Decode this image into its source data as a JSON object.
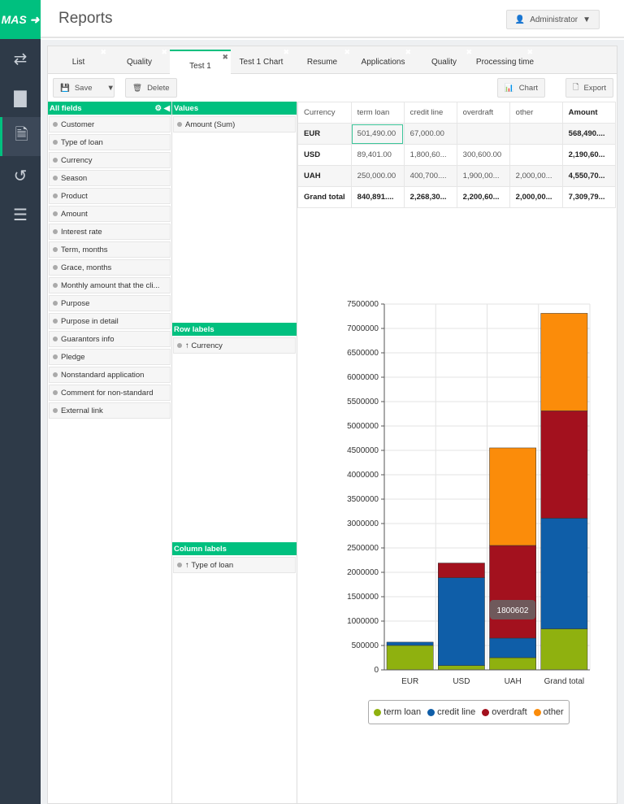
{
  "app": {
    "logo": "MAS",
    "title": "Reports",
    "user": "Administrator"
  },
  "sidebar": [
    {
      "icon": "transfer-icon"
    },
    {
      "icon": "briefcase-icon"
    },
    {
      "icon": "document-icon",
      "active": true
    },
    {
      "icon": "history-icon"
    },
    {
      "icon": "sliders-icon"
    }
  ],
  "tabs": [
    {
      "label": "List"
    },
    {
      "label": "Quality"
    },
    {
      "label": "Test 1",
      "active": true
    },
    {
      "label": "Test 1 Chart"
    },
    {
      "label": "Resume"
    },
    {
      "label": "Applications"
    },
    {
      "label": "Quality"
    },
    {
      "label": "Processing time"
    }
  ],
  "toolbar": {
    "save": "Save",
    "delete": "Delete",
    "chart": "Chart",
    "export": "Export"
  },
  "pivot": {
    "all_fields_label": "All fields",
    "fields": [
      "Customer",
      "Type of loan",
      "Currency",
      "Season",
      "Product",
      "Amount",
      "Interest rate",
      "Term, months",
      "Grace, months",
      "Monthly amount that the cli...",
      "Purpose",
      "Purpose in detail",
      "Guarantors info",
      "Pledge",
      "Nonstandard application",
      "Comment for non-standard",
      "External link"
    ],
    "values_label": "Values",
    "values": [
      "Amount (Sum)"
    ],
    "row_labels_label": "Row labels",
    "rows": [
      "Currency"
    ],
    "column_labels_label": "Column labels",
    "columns": [
      "Type of loan"
    ]
  },
  "table": {
    "headers": [
      "Currency",
      "term loan",
      "credit line",
      "overdraft",
      "other",
      "Amount"
    ],
    "rows": [
      [
        "EUR",
        "501,490.00",
        "67,000.00",
        "",
        "",
        "568,490...."
      ],
      [
        "USD",
        "89,401.00",
        "1,800,60...",
        "300,600.00",
        "",
        "2,190,60..."
      ],
      [
        "UAH",
        "250,000.00",
        "400,700....",
        "1,900,00...",
        "2,000,00...",
        "4,550,70..."
      ],
      [
        "Grand total",
        "840,891....",
        "2,268,30...",
        "2,200,60...",
        "2,000,00...",
        "7,309,79..."
      ]
    ]
  },
  "chart_data": {
    "type": "bar",
    "stacked": true,
    "categories": [
      "EUR",
      "USD",
      "UAH",
      "Grand total"
    ],
    "series": [
      {
        "name": "term loan",
        "color": "#8fb10f",
        "values": [
          501490,
          89401,
          250000,
          840891
        ]
      },
      {
        "name": "credit line",
        "color": "#0f5ea8",
        "values": [
          67000,
          1800602,
          400700,
          2268302
        ]
      },
      {
        "name": "overdraft",
        "color": "#a3111e",
        "values": [
          0,
          300600,
          1900000,
          2200600
        ]
      },
      {
        "name": "other",
        "color": "#fb8c0a",
        "values": [
          0,
          0,
          2000000,
          2000000
        ]
      }
    ],
    "ylim": [
      0,
      7500000
    ],
    "yticks": [
      0,
      500000,
      1000000,
      1500000,
      2000000,
      2500000,
      3000000,
      3500000,
      4000000,
      4500000,
      5000000,
      5500000,
      6000000,
      6500000,
      7000000,
      7500000
    ],
    "grid": true,
    "legend": "bottom",
    "tooltip": "1800602"
  }
}
